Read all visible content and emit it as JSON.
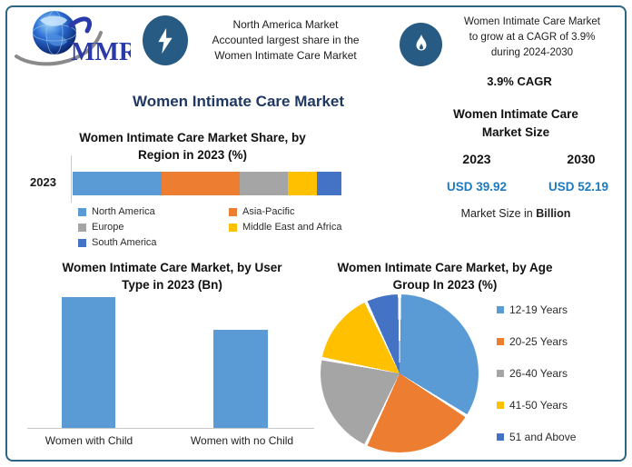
{
  "logo": {
    "text": "MMR"
  },
  "header": {
    "badge1": {
      "icon": "lightning-icon",
      "lines": [
        "North America Market",
        "Accounted largest share in the",
        "Women Intimate Care Market"
      ]
    },
    "badge2": {
      "icon": "flame-icon",
      "lines": [
        "Women Intimate Care Market",
        "to grow at a CAGR of 3.9%",
        "during 2024-2030"
      ],
      "cagr_label": "3.9% CAGR"
    }
  },
  "main_title": "Women Intimate Care Market",
  "market_size_panel": {
    "title_lines": [
      "Women Intimate Care",
      "Market Size"
    ],
    "year_left": "2023",
    "year_right": "2030",
    "value_left": "USD 39.92",
    "value_right": "USD 52.19",
    "footnote_prefix": "Market Size in ",
    "footnote_bold": "Billion",
    "value_color": "#1e7ac0"
  },
  "colors": {
    "accent_navy": "#1f3864",
    "badge_blue": "#275b83",
    "frame_border": "#2d6585"
  },
  "chart_data": [
    {
      "id": "region-share",
      "type": "bar",
      "variant": "stacked-horizontal",
      "title": "Women Intimate Care Market Share, by Region in 2023 (%)",
      "title_lines": [
        "Women Intimate Care Market Share, by",
        "Region in 2023 (%)"
      ],
      "categories": [
        "2023"
      ],
      "series": [
        {
          "name": "North America",
          "values": [
            33
          ],
          "color": "#5b9bd5"
        },
        {
          "name": "Asia-Pacific",
          "values": [
            29
          ],
          "color": "#ed7d31"
        },
        {
          "name": "Europe",
          "values": [
            18
          ],
          "color": "#a5a5a5"
        },
        {
          "name": "Middle East and Africa",
          "values": [
            11
          ],
          "color": "#ffc000"
        },
        {
          "name": "South America",
          "values": [
            9
          ],
          "color": "#4472c4"
        }
      ],
      "unit": "%",
      "legend_position": "bottom",
      "grid": false
    },
    {
      "id": "user-type",
      "type": "bar",
      "title": "Women Intimate Care Market, by User Type in 2023 (Bn)",
      "title_lines": [
        "Women Intimate Care Market, by User",
        "Type in 2023 (Bn)"
      ],
      "categories": [
        "Women with Child",
        "Women with no Child"
      ],
      "values": [
        22.8,
        17.1
      ],
      "bar_color": "#5b9bd5",
      "unit": "Bn",
      "value_axis_shown": false,
      "grid": false
    },
    {
      "id": "age-group",
      "type": "pie",
      "title": "Women Intimate Care Market, by Age Group In 2023 (%)",
      "title_lines": [
        "Women Intimate Care Market, by Age",
        "Group In 2023 (%)"
      ],
      "labels": [
        "12-19 Years",
        "20-25 Years",
        "26-40 Years",
        "41-50 Years",
        "51 and Above"
      ],
      "values": [
        34,
        23,
        21,
        15,
        7
      ],
      "colors": [
        "#5b9bd5",
        "#ed7d31",
        "#a5a5a5",
        "#ffc000",
        "#4472c4"
      ],
      "unit": "%",
      "legend_position": "right"
    }
  ]
}
